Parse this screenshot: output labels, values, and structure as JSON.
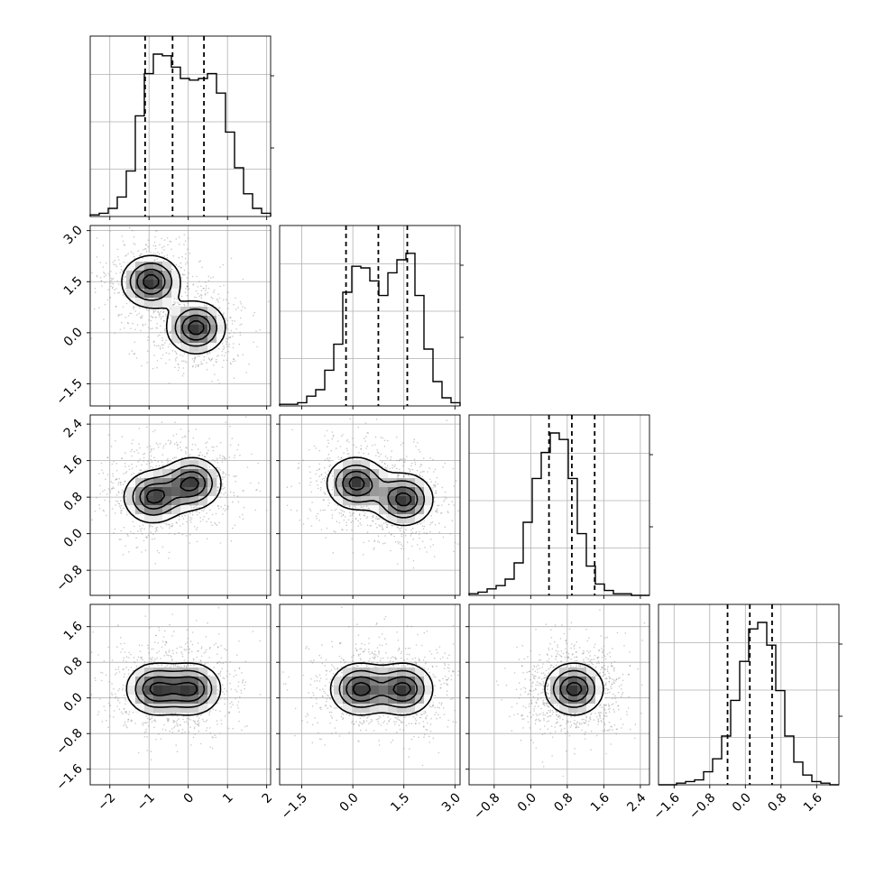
{
  "chart_data": {
    "type": "corner",
    "parameters": 4,
    "panel_grid": "lower-triangle",
    "grid": true,
    "ranges": [
      [
        -2.5,
        2.1
      ],
      [
        -2.15,
        3.15
      ],
      [
        -1.35,
        2.6
      ],
      [
        -1.95,
        2.1
      ]
    ],
    "tick_labels": [
      [
        "−2",
        "−1",
        "0",
        "1",
        "2"
      ],
      [
        "−1.5",
        "0.0",
        "1.5",
        "3.0"
      ],
      [
        "−0.8",
        "0.0",
        "0.8",
        "1.6",
        "2.4"
      ],
      [
        "−1.6",
        "−0.8",
        "0.0",
        "0.8",
        "1.6"
      ]
    ],
    "tick_values": [
      [
        -2,
        -1,
        0,
        1,
        2
      ],
      [
        -1.5,
        0.0,
        1.5,
        3.0
      ],
      [
        -0.8,
        0.0,
        0.8,
        1.6,
        2.4
      ],
      [
        -1.6,
        -0.8,
        0.0,
        0.8,
        1.6
      ]
    ],
    "quantiles": [
      [
        -1.1,
        -0.4,
        0.4
      ],
      [
        -0.2,
        0.75,
        1.6
      ],
      [
        0.4,
        0.9,
        1.4
      ],
      [
        -0.4,
        0.1,
        0.6
      ]
    ],
    "histograms": [
      {
        "edges_start": -2.5,
        "bin_width": 0.23,
        "counts": [
          0.01,
          0.02,
          0.05,
          0.12,
          0.28,
          0.62,
          0.88,
          1.0,
          0.99,
          0.92,
          0.85,
          0.84,
          0.85,
          0.88,
          0.76,
          0.52,
          0.3,
          0.14,
          0.05,
          0.02
        ]
      },
      {
        "edges_start": -2.15,
        "bin_width": 0.265,
        "counts": [
          0.01,
          0.01,
          0.02,
          0.06,
          0.1,
          0.22,
          0.38,
          0.7,
          0.86,
          0.85,
          0.77,
          0.68,
          0.82,
          0.9,
          0.94,
          0.68,
          0.35,
          0.15,
          0.05,
          0.02
        ]
      },
      {
        "edges_start": -1.35,
        "bin_width": 0.1975,
        "counts": [
          0.01,
          0.02,
          0.04,
          0.06,
          0.1,
          0.2,
          0.45,
          0.72,
          0.88,
          1.0,
          0.96,
          0.72,
          0.38,
          0.18,
          0.07,
          0.03,
          0.01,
          0.01,
          0.0,
          0.0
        ]
      },
      {
        "edges_start": -1.95,
        "bin_width": 0.2025,
        "counts": [
          0.0,
          0.0,
          0.01,
          0.02,
          0.03,
          0.08,
          0.16,
          0.3,
          0.52,
          0.76,
          0.96,
          1.0,
          0.86,
          0.58,
          0.3,
          0.14,
          0.06,
          0.02,
          0.01,
          0.0
        ]
      }
    ],
    "modes_2d": [
      {
        "pair": [
          0,
          1
        ],
        "centers": [
          [
            -0.95,
            1.5
          ],
          [
            0.2,
            0.15
          ]
        ]
      },
      {
        "pair": [
          0,
          2
        ],
        "centers": [
          [
            -0.9,
            0.8
          ],
          [
            0.1,
            1.1
          ]
        ]
      },
      {
        "pair": [
          1,
          2
        ],
        "centers": [
          [
            0.1,
            1.1
          ],
          [
            1.5,
            0.75
          ]
        ]
      },
      {
        "pair": [
          0,
          3
        ],
        "centers": [
          [
            -0.85,
            0.2
          ],
          [
            0.1,
            0.2
          ]
        ]
      },
      {
        "pair": [
          1,
          3
        ],
        "centers": [
          [
            0.2,
            0.2
          ],
          [
            1.5,
            0.2
          ]
        ]
      },
      {
        "pair": [
          2,
          3
        ],
        "centers": [
          [
            0.95,
            0.2
          ]
        ]
      }
    ]
  }
}
